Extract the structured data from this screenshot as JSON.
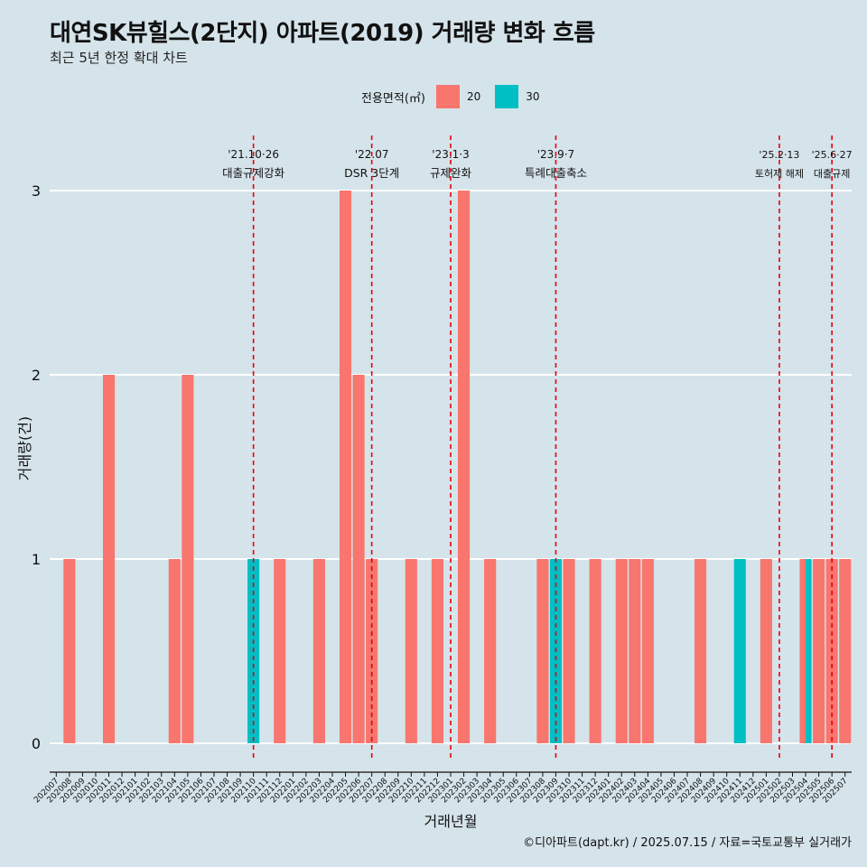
{
  "header": {
    "title": "대연SK뷰힐스(2단지) 아파트(2019) 거래량 변화 흐름",
    "subtitle": "최근 5년 한정 확대 차트"
  },
  "legend": {
    "title": "전용면적(㎡)",
    "items": [
      {
        "label": "20",
        "color": "#f8766d"
      },
      {
        "label": "30",
        "color": "#00bfc4"
      }
    ]
  },
  "caption": "©디아파트(dapt.kr) / 2025.07.15 / 자료=국토교통부 실거래가",
  "chart_data": {
    "type": "bar",
    "stacked": false,
    "xlabel": "거래년월",
    "ylabel": "거래량(건)",
    "ylim": [
      0,
      3
    ],
    "yticks": [
      0,
      1,
      2,
      3
    ],
    "grid": "horizontal major lines",
    "legend_position": "top",
    "categories": [
      "202007",
      "202008",
      "202009",
      "202010",
      "202011",
      "202012",
      "202101",
      "202102",
      "202103",
      "202104",
      "202105",
      "202106",
      "202107",
      "202108",
      "202109",
      "202110",
      "202111",
      "202112",
      "202201",
      "202202",
      "202203",
      "202204",
      "202205",
      "202206",
      "202207",
      "202208",
      "202209",
      "202210",
      "202211",
      "202212",
      "202301",
      "202302",
      "202303",
      "202304",
      "202305",
      "202306",
      "202307",
      "202308",
      "202309",
      "202310",
      "202311",
      "202312",
      "202401",
      "202402",
      "202403",
      "202404",
      "202405",
      "202406",
      "202407",
      "202408",
      "202409",
      "202410",
      "202411",
      "202412",
      "202501",
      "202502",
      "202503",
      "202504",
      "202505",
      "202506",
      "202507"
    ],
    "series": [
      {
        "name": "20",
        "color": "#f8766d",
        "points": [
          [
            "202008",
            1
          ],
          [
            "202011",
            2
          ],
          [
            "202104",
            1
          ],
          [
            "202105",
            2
          ],
          [
            "202112",
            1
          ],
          [
            "202203",
            1
          ],
          [
            "202205",
            3
          ],
          [
            "202206",
            2
          ],
          [
            "202207",
            1
          ],
          [
            "202210",
            1
          ],
          [
            "202212",
            1
          ],
          [
            "202302",
            3
          ],
          [
            "202304",
            1
          ],
          [
            "202308",
            1
          ],
          [
            "202310",
            1
          ],
          [
            "202312",
            1
          ],
          [
            "202402",
            1
          ],
          [
            "202403",
            1
          ],
          [
            "202404",
            1
          ],
          [
            "202408",
            1
          ],
          [
            "202501",
            1
          ],
          [
            "202504",
            1
          ],
          [
            "202505",
            1
          ],
          [
            "202506",
            1
          ],
          [
            "202507",
            1
          ]
        ]
      },
      {
        "name": "30",
        "color": "#00bfc4",
        "points": [
          [
            "202110",
            1
          ],
          [
            "202309",
            1
          ],
          [
            "202411",
            1
          ],
          [
            "202504",
            1
          ]
        ]
      }
    ],
    "annotations": [
      {
        "x": "202110",
        "date": "'21.10·26",
        "text": "대출규제강화"
      },
      {
        "x": "202207",
        "date": "'22.07",
        "text": "DSR 3단계"
      },
      {
        "x": "202301",
        "date": "'23.1·3",
        "text": "규제완화"
      },
      {
        "x": "202309",
        "date": "'23.9·7",
        "text": "특례대출축소"
      },
      {
        "x": "202502",
        "date": "'25.2·13",
        "text": "토허제 해제"
      },
      {
        "x": "202506",
        "date": "'25.6·27",
        "text": "대출규제"
      }
    ],
    "annotation_line_color": "#e8000b"
  }
}
